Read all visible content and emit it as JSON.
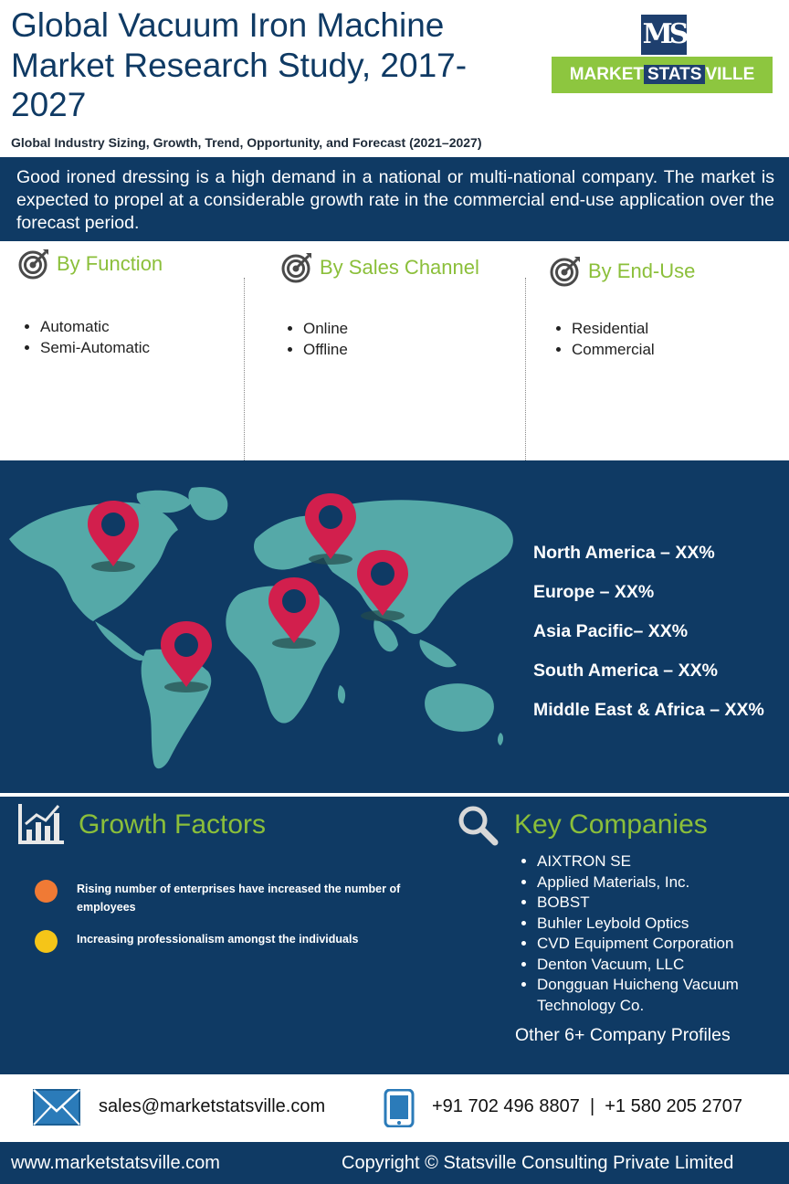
{
  "header": {
    "title": "Global Vacuum Iron Machine Market Research Study, 2017-2027",
    "subtitle": "Global Industry Sizing, Growth, Trend, Opportunity, and Forecast (2021–2027)"
  },
  "logo": {
    "mark": "MS",
    "word_left": "MARKET",
    "word_mid": "STATS",
    "word_right": "VILLE"
  },
  "intro": "Good ironed dressing is a high demand in a national or multi-national company. The market is expected to propel at a considerable growth rate in the commercial end-use application over the forecast period.",
  "segments": [
    {
      "title": "By Function",
      "items": [
        "Automatic",
        "Semi-Automatic"
      ]
    },
    {
      "title": "By Sales Channel",
      "items": [
        "Online",
        "Offline"
      ]
    },
    {
      "title": "By  End-Use",
      "items": [
        "Residential",
        "Commercial"
      ]
    }
  ],
  "regions": [
    "North America – XX%",
    "Europe – XX%",
    "Asia Pacific– XX%",
    "South America – XX%",
    "Middle East & Africa – XX%"
  ],
  "growth_factors": {
    "title": "Growth Factors",
    "items": [
      {
        "text": "Rising number of enterprises have increased the number of employees",
        "color": "#f07a35"
      },
      {
        "text": "Increasing professionalism amongst the individuals",
        "color": "#f5c518"
      }
    ]
  },
  "key_companies": {
    "title": "Key Companies",
    "items": [
      "AIXTRON SE",
      "Applied Materials, Inc.",
      "BOBST",
      "Buhler Leybold Optics",
      "CVD Equipment Corporation",
      "Denton Vacuum, LLC",
      "Dongguan Huicheng Vacuum Technology Co."
    ],
    "more": "Other 6+ Company Profiles"
  },
  "contact": {
    "email": "sales@marketstatsville.com",
    "phone": "+91 702 496 8807  |  +1 580 205 2707"
  },
  "footer": {
    "website": "www.marketstatsville.com",
    "copyright": "Copyright © Statsville Consulting Private Limited"
  },
  "colors": {
    "navy": "#0f3a64",
    "green": "#8bbf3a",
    "map_teal": "#55a9a8",
    "pin": "#d21f4d"
  },
  "icons": [
    "target-icon",
    "map-pin-icon",
    "bar-chart-icon",
    "magnifier-icon",
    "email-icon",
    "mobile-phone-icon"
  ]
}
